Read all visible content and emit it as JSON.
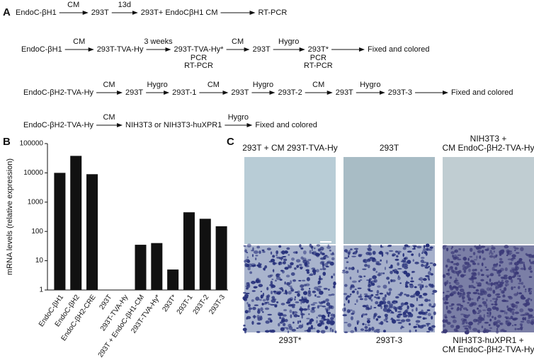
{
  "panel_a": {
    "letter": "A",
    "rows": [
      {
        "nodes": [
          "EndoC-βH1",
          "293T",
          "293T+ EndoCβH1 CM",
          "RT-PCR"
        ],
        "edges": [
          "CM",
          "13d",
          null
        ]
      },
      {
        "nodes": [
          "EndoC-βH1",
          "293T-TVA-Hy",
          {
            "label": "293T-TVA-Hy*",
            "notes": [
              "PCR",
              "RT-PCR"
            ]
          },
          "293T",
          {
            "label": "293T*",
            "notes": [
              "PCR",
              "RT-PCR"
            ]
          },
          "Fixed and colored"
        ],
        "edges": [
          "CM",
          "3 weeks",
          "CM",
          "Hygro",
          null
        ]
      },
      {
        "nodes": [
          "EndoC-βH2-TVA-Hy",
          "293T",
          "293T-1",
          "293T",
          "293T-2",
          "293T",
          "293T-3",
          "Fixed and colored"
        ],
        "edges": [
          "CM",
          "Hygro",
          "CM",
          "Hygro",
          "CM",
          "Hygro",
          null
        ]
      },
      {
        "nodes": [
          "EndoC-βH2-TVA-Hy",
          "NIH3T3 or NIH3T3-huXPR1",
          "Fixed and colored"
        ],
        "edges": [
          "CM",
          "Hygro"
        ]
      }
    ]
  },
  "panel_b": {
    "letter": "B"
  },
  "chart_data": {
    "type": "bar",
    "ylabel": "mRNA levels (relative expression)",
    "categories": [
      "EndoC-βH1",
      "EndoC-βH2",
      "EndoC-βH2-CRE",
      "293T",
      "293T-TVA-Hy",
      "293T + EndoC-βH1-CM",
      "293T-TVA-Hy*",
      "293T*",
      "293T-1",
      "293T-2",
      "293T-3"
    ],
    "values": [
      10000,
      38000,
      9000,
      null,
      null,
      35,
      40,
      5,
      450,
      270,
      150
    ],
    "color": "#111111",
    "log_scale": true,
    "ylim": [
      1,
      100000
    ],
    "yticks": [
      1,
      10,
      100,
      1000,
      10000,
      100000
    ]
  },
  "panel_c": {
    "letter": "C",
    "titles": [
      [
        "293T + CM 293T-TVA-Hy"
      ],
      [
        "293T"
      ],
      [
        "NIH3T3 +",
        "CM EndoC-βH2-TVA-Hy"
      ]
    ],
    "captions": [
      [
        "293T*"
      ],
      [
        "293T-3"
      ],
      [
        "NIH3T3-huXPR1 +",
        "CM EndoC-βH2-TVA-Hy"
      ]
    ]
  }
}
